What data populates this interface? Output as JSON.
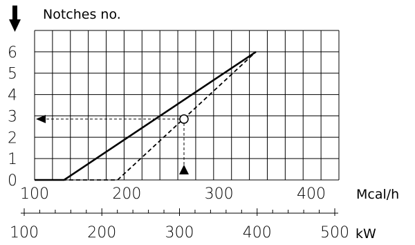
{
  "chart_data": {
    "type": "line",
    "y_axis": {
      "label": "Notches no.",
      "ticks": [
        0,
        1,
        2,
        3,
        4,
        5,
        6
      ],
      "range": [
        0,
        6
      ]
    },
    "x_axis_primary": {
      "unit": "Mcal/h",
      "ticks": [
        100,
        200,
        300,
        400
      ],
      "range": [
        100,
        430
      ]
    },
    "x_axis_secondary": {
      "unit": "kW",
      "ticks": [
        100,
        200,
        300,
        400,
        500
      ]
    },
    "grid": true,
    "series": [
      {
        "style": "solid",
        "points": [
          [
            100,
            0
          ],
          [
            132,
            0
          ],
          [
            340,
            6
          ]
        ]
      },
      {
        "style": "dashed",
        "points": [
          [
            100,
            0
          ],
          [
            190,
            0
          ],
          [
            340,
            6
          ]
        ]
      }
    ],
    "reading_example": {
      "x": 262,
      "y": 2.85,
      "marker": "circle"
    },
    "colors": {
      "line": "#000000",
      "background": "#ffffff"
    }
  }
}
